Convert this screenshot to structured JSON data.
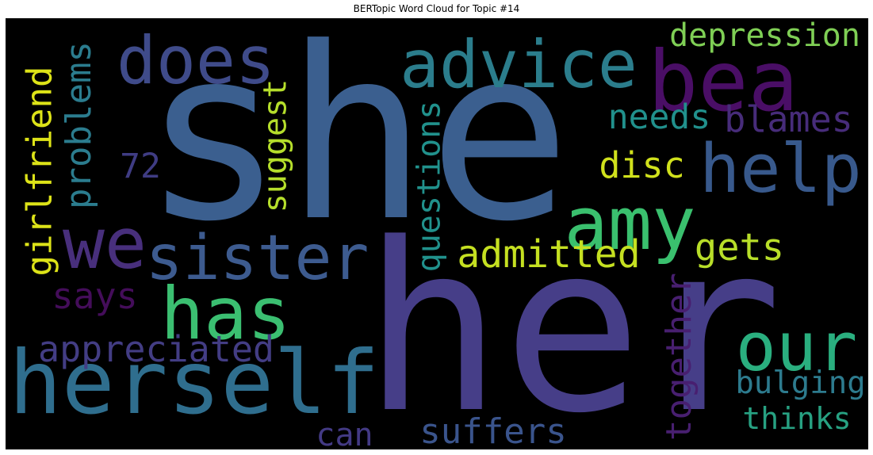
{
  "chart_data": {
    "type": "wordcloud",
    "title": "BERTopic Word Cloud for Topic #14",
    "background": "#000000",
    "words": [
      {
        "text": "she",
        "color": "#3b5f8f"
      },
      {
        "text": "her",
        "color": "#463e88"
      },
      {
        "text": "bea",
        "color": "#4a0e66"
      },
      {
        "text": "advice",
        "color": "#2b7d8c"
      },
      {
        "text": "does",
        "color": "#3f4b8a"
      },
      {
        "text": "help",
        "color": "#38598c"
      },
      {
        "text": "amy",
        "color": "#3ac06e"
      },
      {
        "text": "sister",
        "color": "#3d5b8f"
      },
      {
        "text": "herself",
        "color": "#2f6e8e"
      },
      {
        "text": "has",
        "color": "#3bbf71"
      },
      {
        "text": "our",
        "color": "#2aaf7f"
      },
      {
        "text": "we",
        "color": "#482f7c"
      },
      {
        "text": "depression",
        "color": "#7fcf55"
      },
      {
        "text": "needs",
        "color": "#21908c"
      },
      {
        "text": "blames",
        "color": "#472c7a"
      },
      {
        "text": "disc",
        "color": "#d0e11c"
      },
      {
        "text": "72",
        "color": "#3f3c83"
      },
      {
        "text": "girlfriend",
        "color": "#dde318"
      },
      {
        "text": "problems",
        "color": "#2b7c8e"
      },
      {
        "text": "suggest",
        "color": "#b5de2b"
      },
      {
        "text": "questions",
        "color": "#21918c"
      },
      {
        "text": "admitted",
        "color": "#c5e021"
      },
      {
        "text": "gets",
        "color": "#b8de29"
      },
      {
        "text": "says",
        "color": "#440d5a"
      },
      {
        "text": "appreciated",
        "color": "#433d84"
      },
      {
        "text": "together",
        "color": "#481f70"
      },
      {
        "text": "bulging",
        "color": "#2d7b8e"
      },
      {
        "text": "thinks",
        "color": "#27a182"
      },
      {
        "text": "can",
        "color": "#433a84"
      },
      {
        "text": "suffers",
        "color": "#3a548c"
      }
    ]
  }
}
